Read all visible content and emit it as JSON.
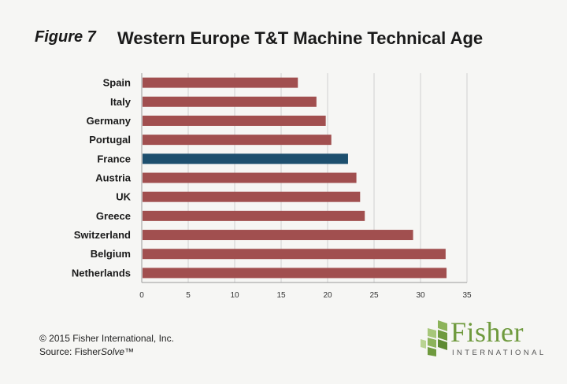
{
  "figure_label": "Figure 7",
  "footer": {
    "copyright": "© 2015 Fisher International, Inc.",
    "source_prefix": "Source: Fisher",
    "source_italic": "Solve",
    "source_suffix": "™"
  },
  "logo": {
    "name": "Fisher",
    "subtitle": "INTERNATIONAL",
    "color": "#6f9a3e"
  },
  "chart_data": {
    "type": "bar",
    "orientation": "horizontal",
    "title": "Western Europe T&T Machine Technical Age",
    "xlabel": "",
    "ylabel": "",
    "categories": [
      "Spain",
      "Italy",
      "Germany",
      "Portugal",
      "France",
      "Austria",
      "UK",
      "Greece",
      "Switzerland",
      "Belgium",
      "Netherlands"
    ],
    "values": [
      16.8,
      18.8,
      19.8,
      20.4,
      22.2,
      23.1,
      23.5,
      24.0,
      29.2,
      32.7,
      32.8
    ],
    "highlight_category": "France",
    "bar_color": "#a14f4f",
    "highlight_color": "#1d4f6e",
    "xlim": [
      0,
      35
    ],
    "xticks": [
      0,
      5,
      10,
      15,
      20,
      25,
      30,
      35
    ],
    "grid": "vertical",
    "legend": "none"
  }
}
